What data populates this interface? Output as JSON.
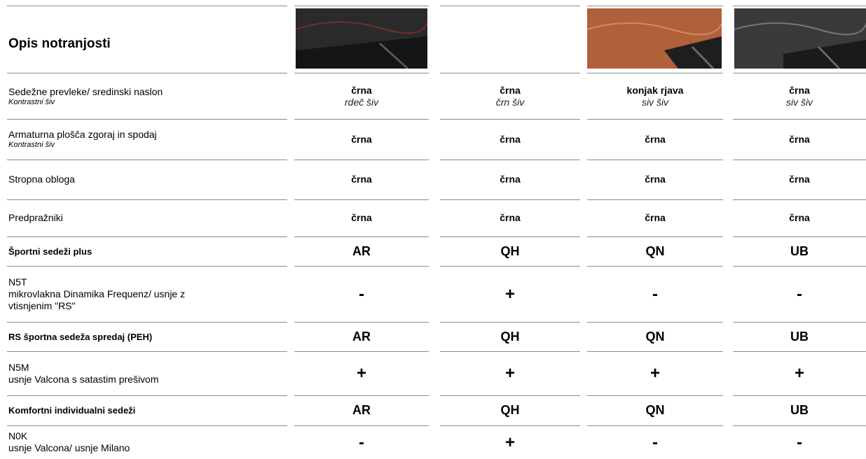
{
  "header": {
    "title": "Opis notranjosti"
  },
  "rows": [
    {
      "label": [
        "Sedežne prevleke/ sredinski naslon"
      ],
      "sub": "Kontrastni šiv",
      "kind": "plain",
      "cells": [
        {
          "main": "črna",
          "sub": "rdeč šiv"
        },
        {
          "main": "črna",
          "sub": "črn šiv"
        },
        {
          "main": "konjak rjava",
          "sub": "siv šiv"
        },
        {
          "main": "črna",
          "sub": "siv šiv"
        }
      ]
    },
    {
      "label": [
        "Armaturna plošča zgoraj in spodaj"
      ],
      "sub": "Kontrastni šiv",
      "kind": "plain",
      "cells": [
        {
          "main": "črna"
        },
        {
          "main": "črna"
        },
        {
          "main": "črna"
        },
        {
          "main": "črna"
        }
      ]
    },
    {
      "label": [
        "Stropna obloga"
      ],
      "kind": "plain",
      "cells": [
        {
          "main": "črna"
        },
        {
          "main": "črna"
        },
        {
          "main": "črna"
        },
        {
          "main": "črna"
        }
      ]
    },
    {
      "label": [
        "Predpražniki"
      ],
      "kind": "plain",
      "cells": [
        {
          "main": "črna"
        },
        {
          "main": "črna"
        },
        {
          "main": "črna"
        },
        {
          "main": "črna"
        }
      ]
    },
    {
      "label": [
        "Športni sedeži plus"
      ],
      "kind": "section",
      "cells": [
        {
          "main": "AR"
        },
        {
          "main": "QH"
        },
        {
          "main": "QN"
        },
        {
          "main": "UB"
        }
      ]
    },
    {
      "label": [
        "N5T",
        "mikrovlakna Dinamika Frequenz/ usnje z",
        "vtisnjenim \"RS\""
      ],
      "kind": "option",
      "cells": [
        {
          "main": "-"
        },
        {
          "main": "+"
        },
        {
          "main": "-"
        },
        {
          "main": "-"
        }
      ]
    },
    {
      "label": [
        "RS športna sedeža spredaj (PEH)"
      ],
      "kind": "section",
      "cells": [
        {
          "main": "AR"
        },
        {
          "main": "QH"
        },
        {
          "main": "QN"
        },
        {
          "main": "UB"
        }
      ]
    },
    {
      "label": [
        "N5M",
        "usnje Valcona s satastim prešivom"
      ],
      "kind": "option",
      "cells": [
        {
          "main": "+"
        },
        {
          "main": "+"
        },
        {
          "main": "+"
        },
        {
          "main": "+"
        }
      ]
    },
    {
      "label": [
        "Komfortni individualni sedeži"
      ],
      "kind": "section",
      "cells": [
        {
          "main": "AR"
        },
        {
          "main": "QH"
        },
        {
          "main": "QN"
        },
        {
          "main": "UB"
        }
      ]
    },
    {
      "label": [
        "N0K",
        "usnje Valcona/ usnje Milano"
      ],
      "kind": "option",
      "cells": [
        {
          "main": "-"
        },
        {
          "main": "+"
        },
        {
          "main": "-"
        },
        {
          "main": "-"
        }
      ]
    }
  ]
}
